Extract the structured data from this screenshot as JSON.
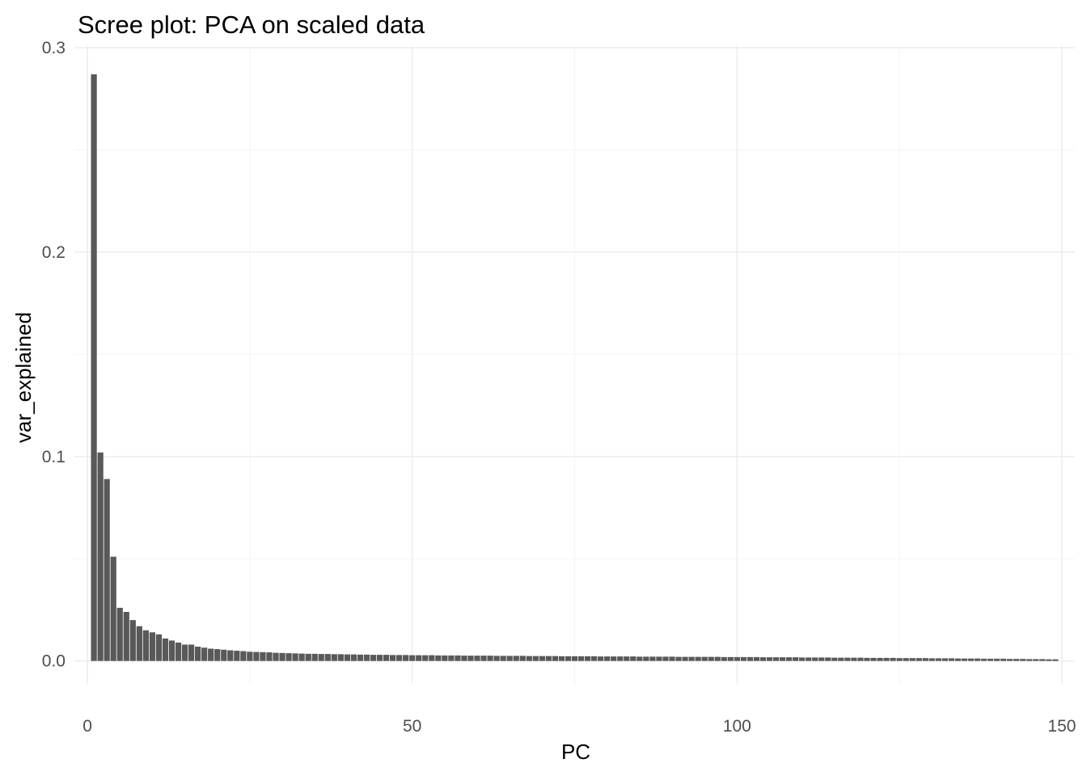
{
  "chart_data": {
    "type": "bar",
    "title": "Scree plot: PCA on scaled data",
    "xlabel": "PC",
    "ylabel": "var_explained",
    "xlim": [
      -2,
      152
    ],
    "ylim": [
      -0.0112,
      0.3012
    ],
    "x_ticks": [
      0,
      50,
      100,
      150
    ],
    "x_tick_labels": [
      "0",
      "50",
      "100",
      "150"
    ],
    "y_ticks": [
      0.0,
      0.1,
      0.2,
      0.3
    ],
    "y_tick_labels": [
      "0.0",
      "0.1",
      "0.2",
      "0.3"
    ],
    "grid": true,
    "legend": "none",
    "bar_color": "#595959",
    "x": [
      1,
      2,
      3,
      4,
      5,
      6,
      7,
      8,
      9,
      10,
      11,
      12,
      13,
      14,
      15,
      16,
      17,
      18,
      19,
      20,
      21,
      22,
      23,
      24,
      25,
      26,
      27,
      28,
      29,
      30,
      31,
      32,
      33,
      34,
      35,
      36,
      37,
      38,
      39,
      40,
      41,
      42,
      43,
      44,
      45,
      46,
      47,
      48,
      49,
      50,
      51,
      52,
      53,
      54,
      55,
      56,
      57,
      58,
      59,
      60,
      61,
      62,
      63,
      64,
      65,
      66,
      67,
      68,
      69,
      70,
      71,
      72,
      73,
      74,
      75,
      76,
      77,
      78,
      79,
      80,
      81,
      82,
      83,
      84,
      85,
      86,
      87,
      88,
      89,
      90,
      91,
      92,
      93,
      94,
      95,
      96,
      97,
      98,
      99,
      100,
      101,
      102,
      103,
      104,
      105,
      106,
      107,
      108,
      109,
      110,
      111,
      112,
      113,
      114,
      115,
      116,
      117,
      118,
      119,
      120,
      121,
      122,
      123,
      124,
      125,
      126,
      127,
      128,
      129,
      130,
      131,
      132,
      133,
      134,
      135,
      136,
      137,
      138,
      139,
      140,
      141,
      142,
      143,
      144,
      145,
      146,
      147,
      148,
      149
    ],
    "values": [
      0.287,
      0.102,
      0.089,
      0.051,
      0.026,
      0.024,
      0.02,
      0.017,
      0.015,
      0.014,
      0.013,
      0.011,
      0.01,
      0.009,
      0.008,
      0.008,
      0.007,
      0.0065,
      0.006,
      0.0058,
      0.0055,
      0.0052,
      0.005,
      0.0048,
      0.0045,
      0.0044,
      0.0043,
      0.0042,
      0.004,
      0.0039,
      0.0038,
      0.0037,
      0.0036,
      0.0035,
      0.0035,
      0.0034,
      0.0034,
      0.0033,
      0.0033,
      0.0032,
      0.0032,
      0.0031,
      0.0031,
      0.003,
      0.003,
      0.003,
      0.0029,
      0.0029,
      0.0029,
      0.0028,
      0.0028,
      0.0028,
      0.0028,
      0.0027,
      0.0027,
      0.0027,
      0.0027,
      0.0026,
      0.0026,
      0.0026,
      0.0026,
      0.0026,
      0.0025,
      0.0025,
      0.0025,
      0.0025,
      0.0025,
      0.0024,
      0.0024,
      0.0024,
      0.0024,
      0.0024,
      0.0023,
      0.0023,
      0.0023,
      0.0023,
      0.0023,
      0.0023,
      0.0022,
      0.0022,
      0.0022,
      0.0022,
      0.0022,
      0.0022,
      0.0021,
      0.0021,
      0.0021,
      0.0021,
      0.0021,
      0.0021,
      0.002,
      0.002,
      0.002,
      0.002,
      0.002,
      0.002,
      0.002,
      0.0019,
      0.0019,
      0.0019,
      0.0019,
      0.0019,
      0.0019,
      0.0018,
      0.0018,
      0.0018,
      0.0018,
      0.0018,
      0.0018,
      0.0017,
      0.0017,
      0.0017,
      0.0017,
      0.0017,
      0.0016,
      0.0016,
      0.0016,
      0.0016,
      0.0016,
      0.0015,
      0.0015,
      0.0015,
      0.0015,
      0.0015,
      0.0014,
      0.0014,
      0.0014,
      0.0014,
      0.0014,
      0.0013,
      0.0013,
      0.0013,
      0.0013,
      0.0012,
      0.0012,
      0.0012,
      0.0012,
      0.0011,
      0.0011,
      0.0011,
      0.0011,
      0.001,
      0.001,
      0.001,
      0.0009,
      0.0009,
      0.0009,
      0.0008,
      0.0008
    ]
  }
}
